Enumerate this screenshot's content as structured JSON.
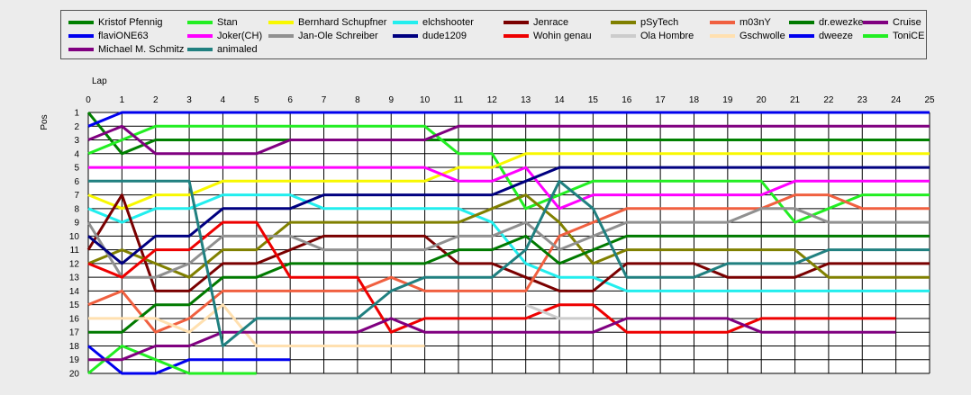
{
  "chart_data": {
    "type": "line",
    "xlabel": "Lap",
    "ylabel": "Pos",
    "xlim": [
      0,
      25
    ],
    "ylim": [
      1,
      20
    ],
    "y_inverted": true,
    "x_ticks": [
      "0",
      "1",
      "2",
      "3",
      "4",
      "5",
      "6",
      "7",
      "8",
      "9",
      "10",
      "11",
      "12",
      "13",
      "14",
      "15",
      "16",
      "17",
      "18",
      "19",
      "20",
      "21",
      "22",
      "23",
      "24",
      "25"
    ],
    "y_ticks": [
      "1",
      "2",
      "3",
      "4",
      "5",
      "6",
      "7",
      "8",
      "9",
      "10",
      "11",
      "12",
      "13",
      "14",
      "15",
      "16",
      "17",
      "18",
      "19",
      "20"
    ],
    "grid": true,
    "legend_position": "top",
    "series": [
      {
        "name": "Kristof Pfennig",
        "color": "#008000",
        "x": [
          0,
          1,
          2,
          3,
          4,
          5,
          6,
          7,
          8,
          9,
          10,
          11,
          12,
          13,
          14,
          15,
          16,
          17,
          18,
          19,
          20,
          21,
          22,
          23,
          24,
          25
        ],
        "y": [
          1,
          4,
          3,
          3,
          3,
          3,
          3,
          3,
          3,
          3,
          3,
          3,
          3,
          3,
          3,
          3,
          3,
          3,
          3,
          3,
          3,
          3,
          3,
          3,
          3,
          3
        ]
      },
      {
        "name": "Stan",
        "color": "#22ee22",
        "x": [
          0,
          1,
          2,
          3,
          4,
          5,
          6,
          7,
          8,
          9,
          10,
          11,
          12,
          13,
          14,
          15,
          16,
          17,
          18,
          19,
          20,
          21,
          22,
          23,
          24,
          25
        ],
        "y": [
          4,
          3,
          2,
          2,
          2,
          2,
          2,
          2,
          2,
          2,
          2,
          4,
          4,
          8,
          7,
          6,
          6,
          6,
          6,
          6,
          6,
          9,
          8,
          7,
          7,
          7
        ]
      },
      {
        "name": "Bernhard Schupfner",
        "color": "#f8f800",
        "x": [
          0,
          1,
          2,
          3,
          4,
          5,
          6,
          7,
          8,
          9,
          10,
          11,
          12,
          13,
          14,
          15,
          16,
          17,
          18,
          19,
          20,
          21,
          22,
          23,
          24,
          25
        ],
        "y": [
          7,
          8,
          7,
          7,
          6,
          6,
          6,
          6,
          6,
          6,
          6,
          5,
          5,
          4,
          4,
          4,
          4,
          4,
          4,
          4,
          4,
          4,
          4,
          4,
          4,
          4
        ]
      },
      {
        "name": "elchshooter",
        "color": "#22eeee",
        "x": [
          0,
          1,
          2,
          3,
          4,
          5,
          6,
          7,
          8,
          9,
          10,
          11,
          12,
          13,
          14,
          15,
          16,
          17,
          18,
          19,
          20,
          21,
          22,
          23,
          24,
          25
        ],
        "y": [
          8,
          9,
          8,
          8,
          7,
          7,
          7,
          8,
          8,
          8,
          8,
          8,
          9,
          12,
          13,
          13,
          14,
          14,
          14,
          14,
          14,
          14,
          14,
          14,
          14,
          14
        ]
      },
      {
        "name": "Jenrace",
        "color": "#7a0000",
        "x": [
          0,
          1,
          2,
          3,
          4,
          5,
          6,
          7,
          8,
          9,
          10,
          11,
          12,
          13,
          14,
          15,
          16,
          17,
          18,
          19,
          20,
          21,
          22,
          23,
          24,
          25
        ],
        "y": [
          11,
          7,
          14,
          14,
          12,
          12,
          11,
          10,
          10,
          10,
          10,
          12,
          12,
          13,
          14,
          14,
          12,
          12,
          12,
          13,
          13,
          13,
          12,
          12,
          12,
          12
        ]
      },
      {
        "name": "pSyTech",
        "color": "#808000",
        "x": [
          0,
          1,
          2,
          3,
          4,
          5,
          6,
          7,
          8,
          9,
          10,
          11,
          12,
          13,
          14,
          15,
          16,
          17,
          18,
          19,
          20,
          21,
          22,
          23,
          24,
          25
        ],
        "y": [
          12,
          11,
          12,
          13,
          11,
          11,
          9,
          9,
          9,
          9,
          9,
          9,
          8,
          7,
          9,
          12,
          11,
          11,
          11,
          11,
          11,
          11,
          13,
          13,
          13,
          13
        ]
      },
      {
        "name": "m03nY",
        "color": "#f06040",
        "x": [
          0,
          1,
          2,
          3,
          4,
          5,
          6,
          7,
          8,
          9,
          10,
          11,
          12,
          13,
          14,
          15,
          16,
          17,
          18,
          19,
          20,
          21,
          22,
          23,
          24,
          25
        ],
        "y": [
          15,
          14,
          17,
          16,
          14,
          14,
          14,
          14,
          14,
          13,
          14,
          14,
          14,
          14,
          10,
          9,
          8,
          8,
          8,
          8,
          8,
          7,
          7,
          8,
          8,
          8
        ]
      },
      {
        "name": "dr.ewezke",
        "color": "#007a00",
        "x": [
          0,
          1,
          2,
          3,
          4,
          5,
          6,
          7,
          8,
          9,
          10,
          11,
          12,
          13,
          14,
          15,
          16,
          17,
          18,
          19,
          20,
          21,
          22,
          23,
          24,
          25
        ],
        "y": [
          17,
          17,
          15,
          15,
          13,
          13,
          12,
          12,
          12,
          12,
          12,
          11,
          11,
          10,
          12,
          11,
          10,
          10,
          10,
          10,
          10,
          10,
          10,
          10,
          10,
          10
        ]
      },
      {
        "name": "Cruise",
        "color": "#800080",
        "x": [
          0,
          1,
          2,
          3,
          4,
          5,
          6,
          7,
          8,
          9,
          10,
          11,
          12,
          13,
          14,
          15,
          16,
          17,
          18,
          19,
          20,
          21,
          22,
          23,
          24,
          25
        ],
        "y": [
          3,
          2,
          4,
          4,
          4,
          4,
          3,
          3,
          3,
          3,
          3,
          2,
          2,
          2,
          2,
          2,
          2,
          2,
          2,
          2,
          2,
          2,
          2,
          2,
          2,
          2
        ]
      },
      {
        "name": "flaviONE63",
        "color": "#0000ee",
        "x": [
          0,
          1,
          2,
          3,
          4,
          5,
          6,
          7,
          8,
          9,
          10,
          11,
          12,
          13,
          14,
          15,
          16,
          17,
          18,
          19,
          20,
          21,
          22,
          23,
          24,
          25
        ],
        "y": [
          2,
          1,
          1,
          1,
          1,
          1,
          1,
          1,
          1,
          1,
          1,
          1,
          1,
          1,
          1,
          1,
          1,
          1,
          1,
          1,
          1,
          1,
          1,
          1,
          1,
          1
        ]
      },
      {
        "name": "Joker(CH)",
        "color": "#ff00ff",
        "x": [
          0,
          1,
          2,
          3,
          4,
          5,
          6,
          7,
          8,
          9,
          10,
          11,
          12,
          13,
          14,
          15,
          16,
          17,
          18,
          19,
          20,
          21,
          22,
          23,
          24,
          25
        ],
        "y": [
          5,
          5,
          5,
          5,
          5,
          5,
          5,
          5,
          5,
          5,
          5,
          6,
          6,
          5,
          8,
          7,
          7,
          7,
          7,
          7,
          7,
          6,
          6,
          6,
          6,
          6
        ]
      },
      {
        "name": "Jan-Ole Schreiber",
        "color": "#909090",
        "x": [
          0,
          1,
          2,
          3,
          4,
          5,
          6,
          7,
          8,
          9,
          10,
          11,
          12,
          13,
          14,
          15,
          16,
          17,
          18,
          19,
          20,
          21,
          22,
          23,
          24,
          25
        ],
        "y": [
          9,
          13,
          13,
          12,
          10,
          10,
          10,
          11,
          11,
          11,
          11,
          10,
          10,
          9,
          11,
          10,
          9,
          9,
          9,
          9,
          8,
          8,
          9,
          9,
          9,
          9
        ]
      },
      {
        "name": "dude1209",
        "color": "#000080",
        "x": [
          0,
          1,
          2,
          3,
          4,
          5,
          6,
          7,
          8,
          9,
          10,
          11,
          12,
          13,
          14,
          15,
          16,
          17,
          18,
          19,
          20,
          21,
          22,
          23,
          24,
          25
        ],
        "y": [
          10,
          12,
          10,
          10,
          8,
          8,
          8,
          7,
          7,
          7,
          7,
          7,
          7,
          6,
          5,
          5,
          5,
          5,
          5,
          5,
          5,
          5,
          5,
          5,
          5,
          5
        ]
      },
      {
        "name": "Wohin genau",
        "color": "#ee0000",
        "x": [
          0,
          1,
          2,
          3,
          4,
          5,
          6,
          7,
          8,
          9,
          10,
          11,
          12,
          13,
          14,
          15,
          16,
          17,
          18,
          19,
          20,
          21,
          22,
          23,
          24
        ],
        "y": [
          12,
          13,
          11,
          11,
          9,
          9,
          13,
          13,
          13,
          17,
          16,
          16,
          16,
          16,
          15,
          15,
          17,
          17,
          17,
          17,
          16,
          16,
          16,
          16,
          16
        ]
      },
      {
        "name": "Ola Hombre",
        "color": "#cccccc",
        "x": [
          13,
          14,
          15
        ],
        "y": [
          15,
          16,
          16
        ]
      },
      {
        "name": "Gschwolle",
        "color": "#ffe0b0",
        "x": [
          0,
          1,
          2,
          3,
          4,
          5,
          6,
          7,
          8,
          9,
          10
        ],
        "y": [
          16,
          16,
          16,
          17,
          15,
          18,
          18,
          18,
          18,
          18,
          18
        ]
      },
      {
        "name": "dweeze",
        "color": "#0000ee",
        "x": [
          0,
          1,
          2,
          3,
          4,
          5,
          6
        ],
        "y": [
          18,
          20,
          20,
          19,
          19,
          19,
          19
        ]
      },
      {
        "name": "ToniCE",
        "color": "#22ee22",
        "x": [
          0,
          1,
          2,
          3,
          4,
          5
        ],
        "y": [
          20,
          18,
          19,
          20,
          20,
          20
        ]
      },
      {
        "name": "Michael M. Schmitz",
        "color": "#800080",
        "x": [
          0,
          1,
          2,
          3,
          4,
          5,
          6,
          7,
          8,
          9,
          10,
          11,
          12,
          13,
          14,
          15,
          16,
          17,
          18,
          19,
          20,
          21,
          22,
          23,
          24
        ],
        "y": [
          19,
          19,
          18,
          18,
          17,
          17,
          17,
          17,
          17,
          16,
          17,
          17,
          17,
          17,
          17,
          17,
          16,
          16,
          16,
          16,
          17,
          17,
          17,
          17,
          17
        ]
      },
      {
        "name": "animaled",
        "color": "#208080",
        "x": [
          0,
          1,
          2,
          3,
          4,
          5,
          6,
          7,
          8,
          9,
          10,
          11,
          12,
          13,
          14,
          15,
          16,
          17,
          18,
          19,
          20,
          21,
          22,
          23,
          24,
          25
        ],
        "y": [
          6,
          6,
          6,
          6,
          18,
          16,
          16,
          16,
          16,
          14,
          13,
          13,
          13,
          11,
          6,
          8,
          13,
          13,
          13,
          12,
          12,
          12,
          11,
          11,
          11,
          11
        ]
      }
    ]
  }
}
